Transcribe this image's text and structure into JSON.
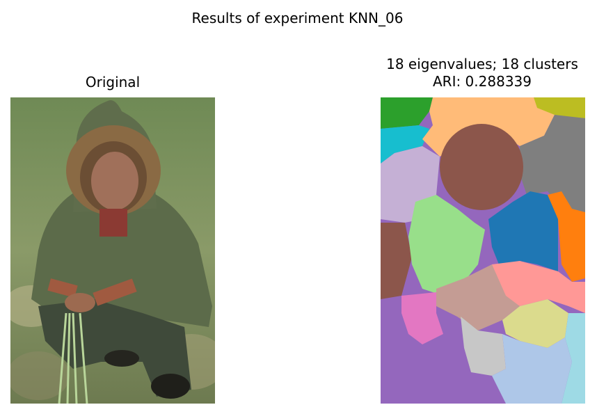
{
  "figure": {
    "title": "Results of experiment KNN_06"
  },
  "left_panel": {
    "title": "Original"
  },
  "right_panel": {
    "title_line1": "18 eigenvalues; 18 clusters",
    "title_line2": "ARI: 0.288339"
  },
  "colors": {
    "cluster_palette": [
      "#2ca02c",
      "#17becf",
      "#ffbb78",
      "#bcbd22",
      "#7f7f7f",
      "#c5b0d5",
      "#8c564b",
      "#98df8a",
      "#1f77b4",
      "#ff7f0e",
      "#ff9896",
      "#c49c94",
      "#e377c2",
      "#dbdb8d",
      "#c7c7c7",
      "#aec7e8",
      "#9edae5",
      "#9467bd"
    ]
  }
}
